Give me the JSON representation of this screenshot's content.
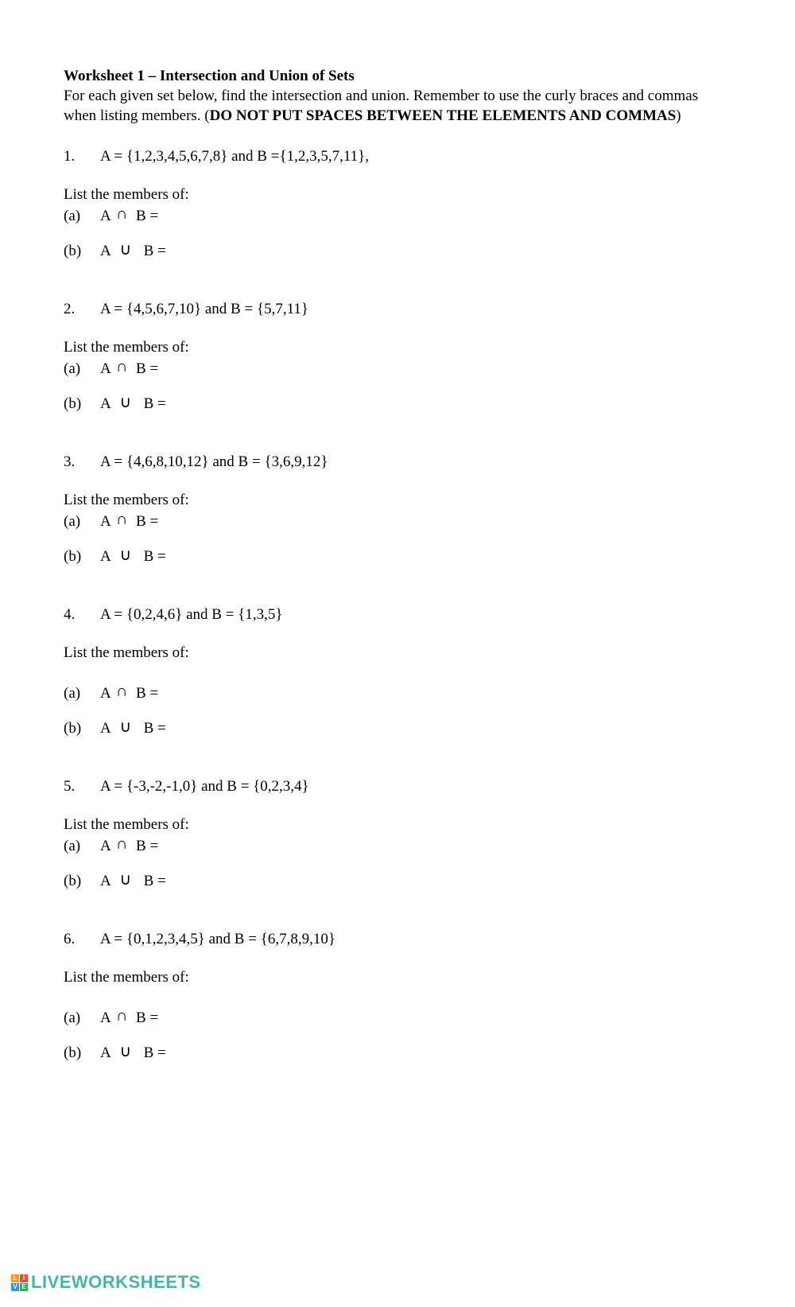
{
  "colors": {
    "text": "#000000",
    "background": "#ffffff",
    "watermark_text": "#46b5a6",
    "wm_sq": [
      "#f39c1f",
      "#e84c3c",
      "#2d97da",
      "#26ad5f"
    ]
  },
  "header": {
    "title": "Worksheet 1 – Intersection and Union of Sets",
    "instructions_pre": "For each given set below, find the intersection and union. Remember to use the curly braces and commas when listing members. (",
    "instructions_bold": "DO NOT PUT SPACES BETWEEN THE ELEMENTS AND COMMAS",
    "instructions_post": ")"
  },
  "labels": {
    "list_heading": "List the members of:",
    "a_label": "(a)",
    "b_label": "(b)",
    "A": "A",
    "B": "B =",
    "intersect": "∩",
    "union": "∪"
  },
  "problems": [
    {
      "num": "1.",
      "def": "A = {1,2,3,4,5,6,7,8} and B ={1,2,3,5,7,11},"
    },
    {
      "num": "2.",
      "def": "A = {4,5,6,7,10} and B = {5,7,11}"
    },
    {
      "num": "3.",
      "def": "A = {4,6,8,10,12} and B = {3,6,9,12}"
    },
    {
      "num": "4.",
      "def": "A = {0,2,4,6} and B = {1,3,5}"
    },
    {
      "num": "5.",
      "def": "A = {-3,-2,-1,0} and B = {0,2,3,4}"
    },
    {
      "num": "6.",
      "def": "A = {0,1,2,3,4,5} and B = {6,7,8,9,10}"
    }
  ],
  "watermark": {
    "letters": [
      "L",
      "I",
      "V",
      "E"
    ],
    "text": "LIVEWORKSHEETS"
  }
}
